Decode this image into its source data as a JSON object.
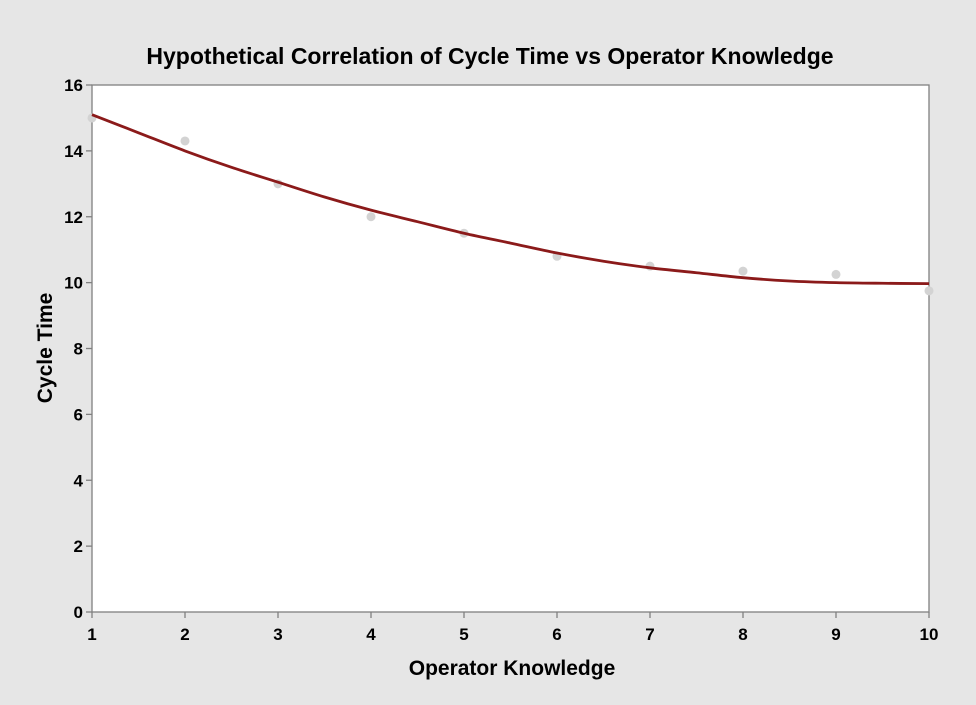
{
  "chart_data": {
    "type": "scatter",
    "title": "Hypothetical Correlation of Cycle Time vs Operator Knowledge",
    "xlabel": "Operator Knowledge",
    "ylabel": "Cycle Time",
    "xlim": [
      1,
      10
    ],
    "ylim": [
      0,
      16
    ],
    "xticks": [
      1,
      2,
      3,
      4,
      5,
      6,
      7,
      8,
      9,
      10
    ],
    "yticks": [
      0,
      2,
      4,
      6,
      8,
      10,
      12,
      14,
      16
    ],
    "grid": false,
    "legend": "none",
    "points": {
      "x": [
        1,
        2,
        3,
        4,
        5,
        6,
        7,
        8,
        9,
        10
      ],
      "y": [
        15.0,
        14.3,
        13.0,
        12.0,
        11.5,
        10.8,
        10.5,
        10.35,
        10.25,
        9.75
      ],
      "color": "#d3d3d3"
    },
    "fit_line": {
      "x": [
        1,
        1.5,
        2,
        2.5,
        3,
        3.5,
        4,
        4.5,
        5,
        5.5,
        6,
        6.5,
        7,
        7.5,
        8,
        8.5,
        9,
        9.5,
        10
      ],
      "y": [
        15.1,
        14.55,
        14.0,
        13.5,
        13.05,
        12.6,
        12.2,
        11.85,
        11.5,
        11.2,
        10.9,
        10.65,
        10.45,
        10.3,
        10.15,
        10.05,
        10.0,
        9.98,
        9.97
      ],
      "color": "#8b1a1a"
    },
    "colors": {
      "background": "#e6e6e6",
      "plot_background": "#ffffff",
      "axis": "#808080"
    }
  }
}
